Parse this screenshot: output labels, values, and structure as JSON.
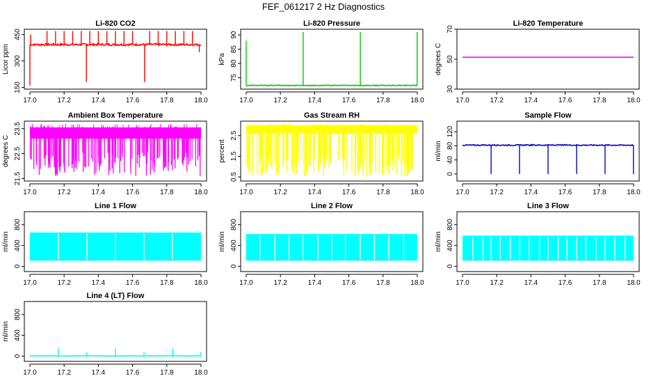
{
  "title": "FEF_061217  2 Hz Diagnostics",
  "chart_data": [
    {
      "type": "line",
      "title": "Li-820 CO2",
      "ylabel": "Licor ppm",
      "color": "#ff0000",
      "xlim": [
        17.0,
        18.0
      ],
      "x_ticks": [
        17.0,
        17.2,
        17.4,
        17.6,
        17.8,
        18.0
      ],
      "ylim": [
        140,
        480
      ],
      "y_ticks": [
        150,
        300,
        450
      ],
      "y_tick_labels": [
        "150",
        "300",
        "450"
      ],
      "baseline": 393,
      "noise": 6,
      "mode": "line",
      "spikes": [
        [
          17.0,
          160
        ],
        [
          17.005,
          450
        ],
        [
          17.1,
          470
        ],
        [
          17.15,
          470
        ],
        [
          17.2,
          470
        ],
        [
          17.25,
          470
        ],
        [
          17.3,
          470
        ],
        [
          17.33,
          180
        ],
        [
          17.35,
          470
        ],
        [
          17.4,
          470
        ],
        [
          17.45,
          470
        ],
        [
          17.5,
          470
        ],
        [
          17.55,
          470
        ],
        [
          17.6,
          470
        ],
        [
          17.67,
          180
        ],
        [
          17.7,
          470
        ],
        [
          17.75,
          470
        ],
        [
          17.8,
          470
        ],
        [
          17.85,
          470
        ],
        [
          17.9,
          470
        ],
        [
          17.95,
          470
        ],
        [
          17.99,
          350
        ]
      ]
    },
    {
      "type": "line",
      "title": "Li-820 Pressure",
      "ylabel": "kPa",
      "color": "#00cc00",
      "xlim": [
        17.0,
        18.0
      ],
      "x_ticks": [
        17.0,
        17.2,
        17.4,
        17.6,
        17.8,
        18.0
      ],
      "ylim": [
        71,
        92
      ],
      "y_ticks": [
        75,
        80,
        85,
        90
      ],
      "y_tick_labels": [
        "75",
        "80",
        "85",
        "90"
      ],
      "baseline": 72.3,
      "noise": 0.15,
      "mode": "line",
      "spikes": [
        [
          17.0,
          88
        ],
        [
          17.333,
          91
        ],
        [
          17.667,
          91
        ],
        [
          17.999,
          91
        ]
      ]
    },
    {
      "type": "line",
      "title": "Li-820 Temperature",
      "ylabel": "degrees C",
      "color": "#ff00ff",
      "xlim": [
        17.0,
        18.0
      ],
      "x_ticks": [
        17.0,
        17.2,
        17.4,
        17.6,
        17.8,
        18.0
      ],
      "ylim": [
        30,
        70
      ],
      "y_ticks": [
        30,
        50,
        70
      ],
      "y_tick_labels": [
        "30",
        "50",
        "70"
      ],
      "baseline": 51.3,
      "noise": 0,
      "mode": "line",
      "spikes": []
    },
    {
      "type": "area",
      "title": "Ambient Box Temperature",
      "ylabel": "degrees C",
      "color": "#ff00ff",
      "xlim": [
        17.0,
        18.0
      ],
      "x_ticks": [
        17.0,
        17.2,
        17.4,
        17.6,
        17.8,
        18.0
      ],
      "ylim": [
        21.4,
        23.8
      ],
      "y_ticks": [
        21.5,
        22.5,
        23.5
      ],
      "y_tick_labels": [
        "21.5",
        "22.5",
        "23.5"
      ],
      "band": [
        23.1,
        23.55
      ],
      "dip_to": [
        21.6,
        22.6
      ],
      "mode": "band",
      "spikes": []
    },
    {
      "type": "area",
      "title": "Gas Stream RH",
      "ylabel": "percent",
      "color": "#ffff00",
      "xlim": [
        17.0,
        18.0
      ],
      "x_ticks": [
        17.0,
        17.2,
        17.4,
        17.6,
        17.8,
        18.0
      ],
      "ylim": [
        0.3,
        3.2
      ],
      "y_ticks": [
        0.5,
        1.5,
        2.5
      ],
      "y_tick_labels": [
        "0.5",
        "1.5",
        "2.5"
      ],
      "band": [
        2.6,
        3.0
      ],
      "dip_to": [
        0.5,
        1.5
      ],
      "mode": "band",
      "spikes": []
    },
    {
      "type": "line",
      "title": "Sample Flow",
      "ylabel": "ml/min",
      "color": "#0000cc",
      "xlim": [
        17.0,
        18.0
      ],
      "x_ticks": [
        17.0,
        17.2,
        17.4,
        17.6,
        17.8,
        18.0
      ],
      "ylim": [
        -20,
        150
      ],
      "y_ticks": [
        0,
        40,
        80,
        120
      ],
      "y_tick_labels": [
        "0",
        "40",
        "80",
        "120"
      ],
      "baseline": 82,
      "noise": 1.5,
      "mode": "line",
      "spikes": [
        [
          17.167,
          0
        ],
        [
          17.333,
          0
        ],
        [
          17.5,
          0
        ],
        [
          17.667,
          0
        ],
        [
          17.833,
          0
        ],
        [
          17.999,
          0
        ]
      ]
    },
    {
      "type": "area",
      "title": "Line 1 Flow",
      "ylabel": "ml/min",
      "color": "#00ffff",
      "xlim": [
        17.0,
        18.0
      ],
      "x_ticks": [
        17.0,
        17.2,
        17.4,
        17.6,
        17.8,
        18.0
      ],
      "ylim": [
        -100,
        1050
      ],
      "y_ticks": [
        0,
        400,
        800
      ],
      "y_tick_labels": [
        "0",
        "400",
        "800"
      ],
      "band": [
        110,
        650
      ],
      "gaps": [
        17.167,
        17.333,
        17.5,
        17.667,
        17.833
      ],
      "mode": "fill",
      "spikes": []
    },
    {
      "type": "area",
      "title": "Line 2 Flow",
      "ylabel": "ml/min",
      "color": "#00ffff",
      "xlim": [
        17.0,
        18.0
      ],
      "x_ticks": [
        17.0,
        17.2,
        17.4,
        17.6,
        17.8,
        18.0
      ],
      "ylim": [
        -100,
        1050
      ],
      "y_ticks": [
        0,
        400,
        800
      ],
      "y_tick_labels": [
        "0",
        "400",
        "800"
      ],
      "band": [
        110,
        620
      ],
      "gaps": [
        17.08,
        17.167,
        17.25,
        17.333,
        17.42,
        17.5,
        17.58,
        17.667,
        17.75,
        17.833,
        17.92
      ],
      "mode": "fill",
      "spikes": []
    },
    {
      "type": "area",
      "title": "Line 3 Flow",
      "ylabel": "ml/min",
      "color": "#00ffff",
      "xlim": [
        17.0,
        18.0
      ],
      "x_ticks": [
        17.0,
        17.2,
        17.4,
        17.6,
        17.8,
        18.0
      ],
      "ylim": [
        -100,
        1050
      ],
      "y_ticks": [
        0,
        400,
        800
      ],
      "y_tick_labels": [
        "0",
        "400",
        "800"
      ],
      "band": [
        110,
        590
      ],
      "gaps": [
        17.06,
        17.12,
        17.167,
        17.22,
        17.28,
        17.333,
        17.39,
        17.45,
        17.5,
        17.56,
        17.61,
        17.667,
        17.72,
        17.78,
        17.833,
        17.89,
        17.95
      ],
      "mode": "fill",
      "spikes": []
    },
    {
      "type": "line",
      "title": "Line 4 (LT) Flow",
      "ylabel": "ml/min",
      "color": "#00ffff",
      "xlim": [
        17.0,
        18.0
      ],
      "x_ticks": [
        17.0,
        17.2,
        17.4,
        17.6,
        17.8,
        18.0
      ],
      "ylim": [
        -100,
        1050
      ],
      "y_ticks": [
        0,
        400,
        800
      ],
      "y_tick_labels": [
        "0",
        "400",
        "800"
      ],
      "baseline": 5,
      "noise": 2,
      "mode": "line",
      "spikes": [
        [
          17.167,
          150
        ],
        [
          17.333,
          80
        ],
        [
          17.5,
          150
        ],
        [
          17.667,
          80
        ],
        [
          17.833,
          150
        ],
        [
          17.999,
          80
        ]
      ]
    }
  ]
}
